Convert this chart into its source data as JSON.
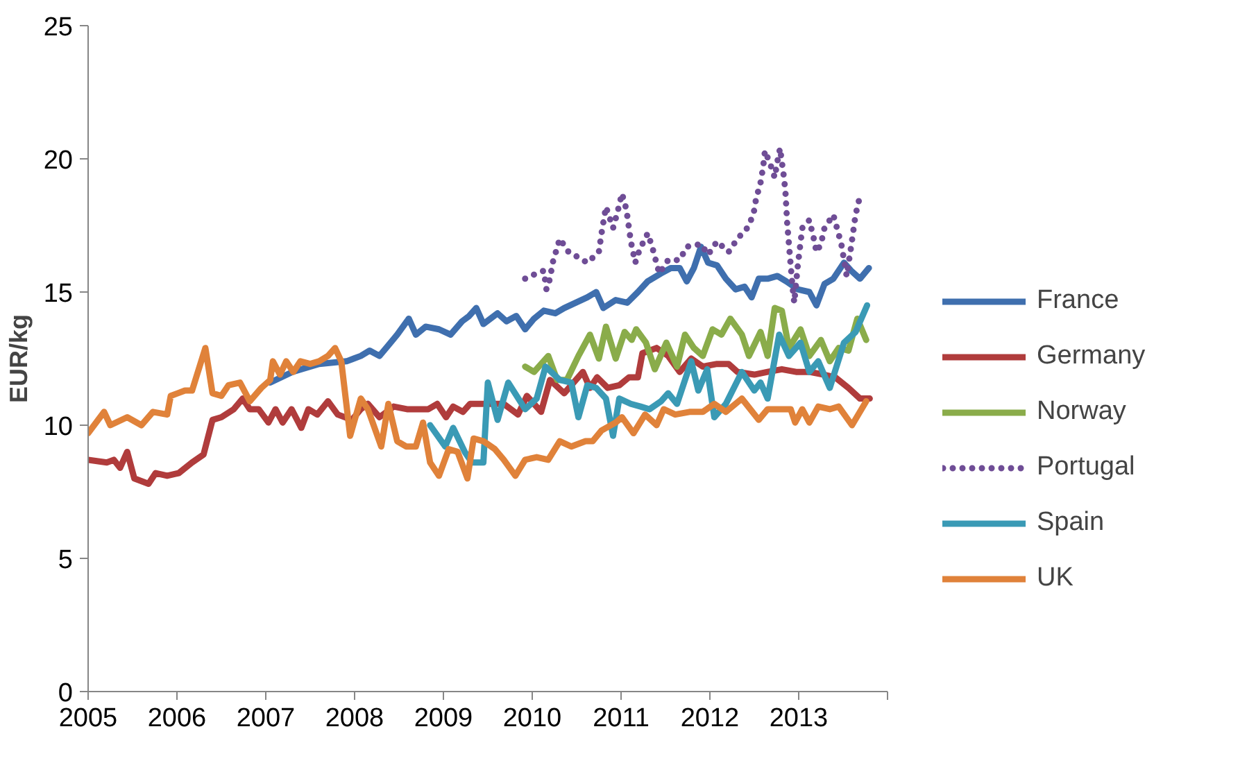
{
  "chart_data": {
    "type": "line",
    "ylabel": "EUR/kg",
    "xlim": [
      2005,
      2014
    ],
    "xticks": [
      2005,
      2006,
      2007,
      2008,
      2009,
      2010,
      2011,
      2012,
      2013,
      {
        "value": 2014,
        "label": null
      }
    ],
    "ylim": [
      0,
      25
    ],
    "yticks": [
      0,
      5,
      10,
      15,
      20,
      25
    ],
    "grid": false,
    "legend": "right",
    "line_style": "solid",
    "series": [
      {
        "name": "France",
        "color": "#3f6fae",
        "x": [
          2007.05,
          2007.3,
          2007.6,
          2007.91,
          2008.07,
          2008.17,
          2008.28,
          2008.38,
          2008.48,
          2008.61,
          2008.69,
          2008.8,
          2008.95,
          2009.08,
          2009.21,
          2009.29,
          2009.37,
          2009.45,
          2009.61,
          2009.71,
          2009.82,
          2009.92,
          2010.02,
          2010.13,
          2010.26,
          2010.36,
          2010.49,
          2010.62,
          2010.72,
          2010.8,
          2010.94,
          2011.07,
          2011.19,
          2011.3,
          2011.45,
          2011.56,
          2011.66,
          2011.74,
          2011.82,
          2011.9,
          2011.98,
          2012.08,
          2012.18,
          2012.29,
          2012.39,
          2012.47,
          2012.55,
          2012.65,
          2012.76,
          2012.86,
          2012.99,
          2013.12,
          2013.2,
          2013.29,
          2013.39,
          2013.51,
          2013.59,
          2013.69,
          2013.79
        ],
        "values": [
          11.6,
          12.0,
          12.3,
          12.4,
          12.6,
          12.8,
          12.6,
          13.0,
          13.4,
          14.0,
          13.4,
          13.7,
          13.6,
          13.4,
          13.9,
          14.1,
          14.4,
          13.8,
          14.2,
          13.9,
          14.1,
          13.6,
          14.0,
          14.3,
          14.2,
          14.4,
          14.6,
          14.8,
          15.0,
          14.4,
          14.7,
          14.6,
          15.0,
          15.4,
          15.7,
          15.9,
          15.9,
          15.4,
          15.9,
          16.7,
          16.1,
          16.0,
          15.5,
          15.1,
          15.2,
          14.8,
          15.5,
          15.5,
          15.6,
          15.4,
          15.1,
          15.0,
          14.5,
          15.3,
          15.5,
          16.1,
          15.8,
          15.5,
          15.9
        ]
      },
      {
        "name": "Germany",
        "color": "#b03c3c",
        "x": [
          2005.0,
          2005.21,
          2005.29,
          2005.36,
          2005.44,
          2005.52,
          2005.68,
          2005.76,
          2005.89,
          2006.02,
          2006.17,
          2006.3,
          2006.4,
          2006.5,
          2006.64,
          2006.74,
          2006.82,
          2006.92,
          2007.03,
          2007.11,
          2007.19,
          2007.29,
          2007.4,
          2007.48,
          2007.58,
          2007.7,
          2007.81,
          2007.97,
          2008.07,
          2008.15,
          2008.28,
          2008.44,
          2008.59,
          2008.75,
          2008.83,
          2008.93,
          2009.03,
          2009.11,
          2009.22,
          2009.3,
          2009.48,
          2009.68,
          2009.84,
          2009.94,
          2010.1,
          2010.2,
          2010.36,
          2010.57,
          2010.65,
          2010.73,
          2010.85,
          2010.98,
          2011.09,
          2011.19,
          2011.24,
          2011.4,
          2011.53,
          2011.66,
          2011.79,
          2011.92,
          2012.08,
          2012.21,
          2012.31,
          2012.5,
          2012.65,
          2012.81,
          2012.97,
          2013.12,
          2013.28,
          2013.41,
          2013.56,
          2013.69,
          2013.8
        ],
        "values": [
          8.7,
          8.6,
          8.7,
          8.4,
          9.0,
          8.0,
          7.8,
          8.2,
          8.1,
          8.2,
          8.6,
          8.9,
          10.2,
          10.3,
          10.6,
          11.0,
          10.6,
          10.6,
          10.1,
          10.6,
          10.1,
          10.6,
          9.9,
          10.6,
          10.4,
          10.9,
          10.4,
          10.2,
          10.6,
          10.8,
          10.3,
          10.7,
          10.6,
          10.6,
          10.6,
          10.8,
          10.3,
          10.7,
          10.5,
          10.8,
          10.8,
          10.8,
          10.4,
          11.1,
          10.5,
          11.7,
          11.2,
          12.0,
          11.4,
          11.8,
          11.4,
          11.5,
          11.8,
          11.8,
          12.7,
          12.9,
          12.6,
          12.0,
          12.5,
          12.2,
          12.3,
          12.3,
          12.0,
          11.9,
          12.0,
          12.1,
          12.0,
          12.0,
          11.9,
          11.8,
          11.4,
          11.0,
          11.0
        ]
      },
      {
        "name": "Norway",
        "color": "#8aac4a",
        "x": [
          2009.92,
          2010.02,
          2010.18,
          2010.28,
          2010.39,
          2010.52,
          2010.65,
          2010.75,
          2010.83,
          2010.94,
          2011.04,
          2011.12,
          2011.17,
          2011.28,
          2011.38,
          2011.51,
          2011.63,
          2011.72,
          2011.82,
          2011.92,
          2012.03,
          2012.13,
          2012.23,
          2012.36,
          2012.44,
          2012.57,
          2012.65,
          2012.73,
          2012.81,
          2012.89,
          2013.02,
          2013.12,
          2013.25,
          2013.35,
          2013.45,
          2013.56,
          2013.66,
          2013.76
        ],
        "values": [
          12.2,
          12.0,
          12.6,
          11.7,
          11.7,
          12.6,
          13.4,
          12.5,
          13.7,
          12.5,
          13.5,
          13.2,
          13.6,
          13.1,
          12.1,
          13.1,
          12.2,
          13.4,
          12.9,
          12.6,
          13.6,
          13.4,
          14.0,
          13.4,
          12.6,
          13.5,
          12.6,
          14.4,
          14.3,
          12.9,
          13.6,
          12.6,
          13.2,
          12.4,
          12.9,
          12.8,
          14.0,
          13.2
        ]
      },
      {
        "name": "Portugal",
        "color": "#6f4d96",
        "line_style": "dotted",
        "x": [
          2009.92,
          2010.05,
          2010.13,
          2010.16,
          2010.2,
          2010.23,
          2010.31,
          2010.41,
          2010.52,
          2010.62,
          2010.75,
          2010.78,
          2010.83,
          2010.91,
          2010.96,
          2011.01,
          2011.06,
          2011.11,
          2011.16,
          2011.21,
          2011.3,
          2011.35,
          2011.43,
          2011.53,
          2011.66,
          2011.74,
          2011.9,
          2011.98,
          2012.08,
          2012.21,
          2012.31,
          2012.42,
          2012.49,
          2012.52,
          2012.57,
          2012.6,
          2012.62,
          2012.68,
          2012.73,
          2012.76,
          2012.79,
          2012.83,
          2012.85,
          2012.87,
          2012.9,
          2012.93,
          2012.95,
          2012.99,
          2013.04,
          2013.12,
          2013.17,
          2013.2,
          2013.25,
          2013.29,
          2013.39,
          2013.48,
          2013.54,
          2013.59,
          2013.64,
          2013.69,
          2013.74
        ],
        "values": [
          15.5,
          15.7,
          15.8,
          15.1,
          15.5,
          16.1,
          17.0,
          16.5,
          16.3,
          16.1,
          16.5,
          17.2,
          18.2,
          17.4,
          18.0,
          18.7,
          18.1,
          16.9,
          16.1,
          16.6,
          17.2,
          16.7,
          15.7,
          16.2,
          16.2,
          16.7,
          16.8,
          16.4,
          16.9,
          16.5,
          17.0,
          17.4,
          17.9,
          18.5,
          19.1,
          19.7,
          20.3,
          19.8,
          19.3,
          19.9,
          20.4,
          19.4,
          18.8,
          17.6,
          16.4,
          15.2,
          14.6,
          16.0,
          17.4,
          17.7,
          17.0,
          16.5,
          16.8,
          17.4,
          17.9,
          16.8,
          15.6,
          16.7,
          17.9,
          18.6,
          18.6
        ]
      },
      {
        "name": "Spain",
        "color": "#3a9ab5",
        "x": [
          2008.85,
          2009.02,
          2009.11,
          2009.24,
          2009.32,
          2009.45,
          2009.5,
          2009.61,
          2009.73,
          2009.92,
          2010.05,
          2010.15,
          2010.31,
          2010.44,
          2010.52,
          2010.62,
          2010.72,
          2010.83,
          2010.91,
          2010.98,
          2011.11,
          2011.22,
          2011.32,
          2011.45,
          2011.53,
          2011.63,
          2011.79,
          2011.87,
          2011.97,
          2012.05,
          2012.18,
          2012.36,
          2012.5,
          2012.57,
          2012.65,
          2012.78,
          2012.89,
          2013.02,
          2013.12,
          2013.22,
          2013.35,
          2013.51,
          2013.64,
          2013.77
        ],
        "values": [
          10.0,
          9.2,
          9.9,
          9.0,
          8.6,
          8.6,
          11.6,
          10.2,
          11.6,
          10.6,
          11.0,
          12.2,
          11.7,
          11.6,
          10.3,
          11.5,
          11.4,
          11.0,
          9.6,
          11.0,
          10.8,
          10.7,
          10.6,
          10.9,
          11.2,
          10.8,
          12.4,
          11.3,
          12.1,
          10.3,
          10.8,
          12.0,
          11.3,
          11.6,
          11.0,
          13.4,
          12.6,
          13.1,
          12.0,
          12.4,
          11.4,
          13.1,
          13.5,
          14.5
        ]
      },
      {
        "name": "UK",
        "color": "#e0823a",
        "x": [
          2005.0,
          2005.18,
          2005.25,
          2005.44,
          2005.6,
          2005.73,
          2005.89,
          2005.93,
          2006.09,
          2006.17,
          2006.32,
          2006.4,
          2006.5,
          2006.58,
          2006.71,
          2006.82,
          2006.95,
          2007.05,
          2007.08,
          2007.16,
          2007.23,
          2007.31,
          2007.39,
          2007.5,
          2007.6,
          2007.7,
          2007.78,
          2007.85,
          2007.95,
          2008.07,
          2008.15,
          2008.3,
          2008.38,
          2008.48,
          2008.58,
          2008.69,
          2008.77,
          2008.85,
          2008.95,
          2009.06,
          2009.16,
          2009.27,
          2009.34,
          2009.45,
          2009.58,
          2009.68,
          2009.81,
          2009.92,
          2010.05,
          2010.18,
          2010.31,
          2010.44,
          2010.6,
          2010.68,
          2010.78,
          2010.94,
          2011.01,
          2011.14,
          2011.27,
          2011.4,
          2011.48,
          2011.61,
          2011.77,
          2011.92,
          2012.05,
          2012.18,
          2012.36,
          2012.55,
          2012.65,
          2012.81,
          2012.91,
          2012.96,
          2013.04,
          2013.12,
          2013.22,
          2013.35,
          2013.45,
          2013.6,
          2013.76
        ],
        "values": [
          9.7,
          10.5,
          10.0,
          10.3,
          10.0,
          10.5,
          10.4,
          11.1,
          11.3,
          11.3,
          12.9,
          11.2,
          11.1,
          11.5,
          11.6,
          10.9,
          11.4,
          11.7,
          12.4,
          11.9,
          12.4,
          12.0,
          12.4,
          12.3,
          12.4,
          12.6,
          12.9,
          12.4,
          9.6,
          11.0,
          10.6,
          9.2,
          10.8,
          9.4,
          9.2,
          9.2,
          10.1,
          8.6,
          8.1,
          9.1,
          9.0,
          8.0,
          9.5,
          9.4,
          9.1,
          8.7,
          8.1,
          8.7,
          8.8,
          8.7,
          9.4,
          9.2,
          9.4,
          9.4,
          9.8,
          10.1,
          10.3,
          9.7,
          10.4,
          10.0,
          10.6,
          10.4,
          10.5,
          10.5,
          10.8,
          10.5,
          11.0,
          10.2,
          10.6,
          10.6,
          10.6,
          10.1,
          10.6,
          10.1,
          10.7,
          10.6,
          10.7,
          10.0,
          10.9
        ]
      }
    ]
  }
}
